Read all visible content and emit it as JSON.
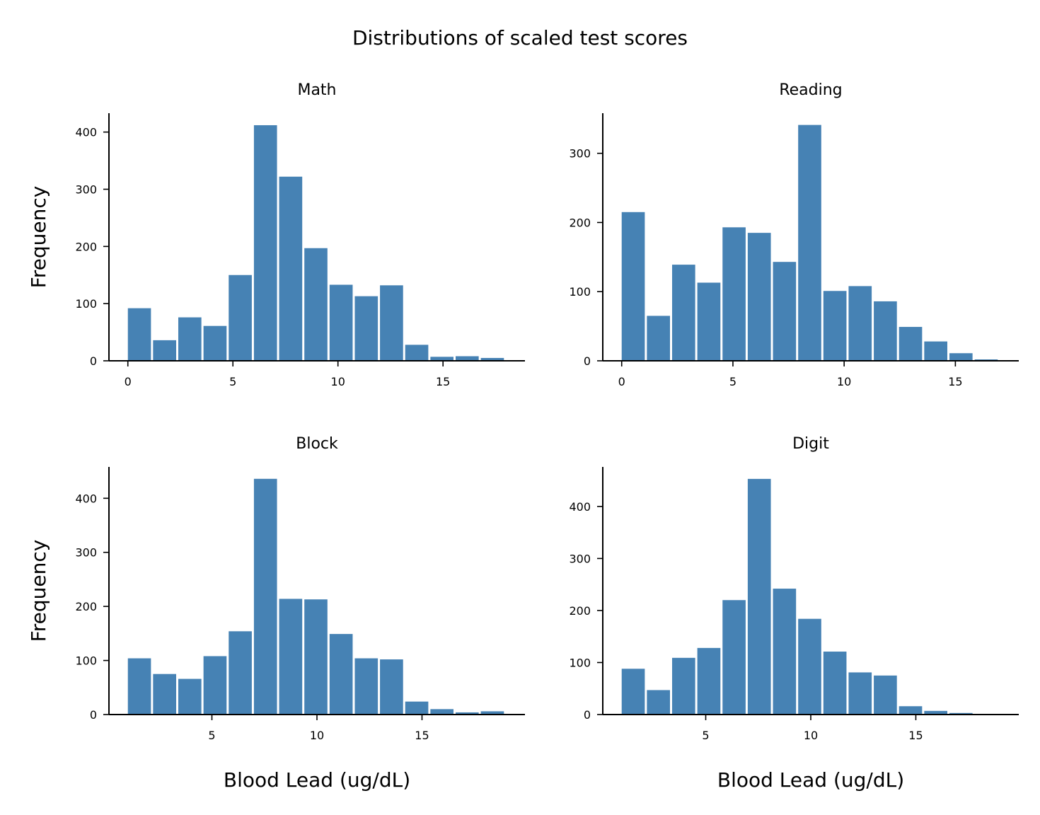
{
  "figure": {
    "title": "Distributions of scaled test scores",
    "bar_color": "#4682b4"
  },
  "chart_data": [
    {
      "type": "bar",
      "title": "Math",
      "xlabel": "",
      "ylabel": "Frequency",
      "bin_width": 1.2,
      "bin_starts": [
        0,
        1.2,
        2.4,
        3.6,
        4.8,
        6.0,
        7.2,
        8.4,
        9.6,
        10.8,
        12.0,
        13.2,
        14.4,
        15.6,
        16.8
      ],
      "values": [
        92,
        36,
        76,
        61,
        150,
        412,
        322,
        197,
        133,
        113,
        132,
        28,
        7,
        8,
        5
      ],
      "xlim": [
        -0.9,
        18.9
      ],
      "ylim": [
        0,
        433
      ],
      "xticks": [
        0,
        5,
        10,
        15
      ],
      "yticks": [
        0,
        100,
        200,
        300,
        400
      ],
      "grid": false
    },
    {
      "type": "bar",
      "title": "Reading",
      "xlabel": "",
      "ylabel": "",
      "bin_width": 1.1333,
      "bin_starts": [
        0,
        1.1333,
        2.2667,
        3.4,
        4.5333,
        5.6667,
        6.8,
        7.9333,
        9.0667,
        10.2,
        11.3333,
        12.4667,
        13.6,
        14.7333,
        15.8667
      ],
      "values": [
        215,
        65,
        139,
        113,
        193,
        185,
        143,
        341,
        101,
        108,
        86,
        49,
        28,
        11,
        2
      ],
      "xlim": [
        -0.85,
        17.85
      ],
      "ylim": [
        0,
        358
      ],
      "xticks": [
        0,
        5,
        10,
        15
      ],
      "yticks": [
        0,
        100,
        200,
        300
      ],
      "grid": false
    },
    {
      "type": "bar",
      "title": "Block",
      "xlabel": "Blood Lead (ug/dL)",
      "ylabel": "Frequency",
      "bin_width": 1.2,
      "bin_starts": [
        1.0,
        2.2,
        3.4,
        4.6,
        5.8,
        7.0,
        8.2,
        9.4,
        10.6,
        11.8,
        13.0,
        14.2,
        15.4,
        16.6,
        17.8
      ],
      "values": [
        104,
        75,
        66,
        108,
        154,
        436,
        214,
        213,
        149,
        104,
        102,
        24,
        10,
        4,
        6
      ],
      "xlim": [
        0.1,
        19.9
      ],
      "ylim": [
        0,
        458
      ],
      "xticks": [
        5,
        10,
        15
      ],
      "yticks": [
        0,
        100,
        200,
        300,
        400
      ],
      "grid": false
    },
    {
      "type": "bar",
      "title": "Digit",
      "xlabel": "Blood Lead (ug/dL)",
      "ylabel": "",
      "bin_width": 1.2,
      "bin_starts": [
        1.0,
        2.2,
        3.4,
        4.6,
        5.8,
        7.0,
        8.2,
        9.4,
        10.6,
        11.8,
        13.0,
        14.2,
        15.4,
        16.6,
        17.8
      ],
      "values": [
        88,
        47,
        109,
        128,
        220,
        453,
        242,
        184,
        121,
        81,
        75,
        16,
        7,
        3,
        0
      ],
      "xlim": [
        0.1,
        19.9
      ],
      "ylim": [
        0,
        476
      ],
      "xticks": [
        5,
        10,
        15
      ],
      "yticks": [
        0,
        100,
        200,
        300,
        400
      ],
      "grid": false
    }
  ]
}
